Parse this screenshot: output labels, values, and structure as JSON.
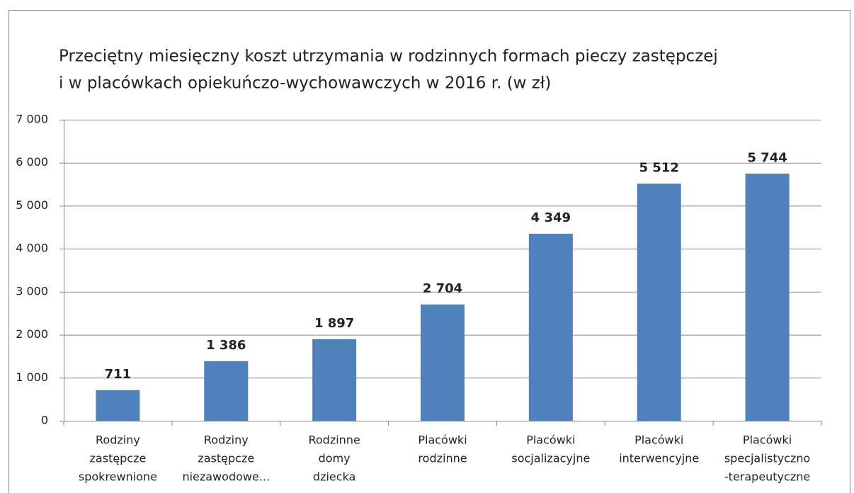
{
  "chart_data": {
    "type": "bar",
    "title": [
      "Przeciętny miesięczny koszt utrzymania  w rodzinnych formach pieczy zastępczej",
      "i w placówkach opiekuńczo-wychowawczych  w 2016 r. (w zł)"
    ],
    "categories": [
      [
        "Rodziny",
        "zastępcze",
        "spokrewnione"
      ],
      [
        "Rodziny",
        "zastępcze",
        "niezawodowe..."
      ],
      [
        "Rodzinne",
        "domy",
        "dziecka"
      ],
      [
        "Placówki",
        "rodzinne"
      ],
      [
        "Placówki",
        "socjalizacyjne"
      ],
      [
        "Placówki",
        "interwencyjne"
      ],
      [
        "Placówki",
        "specjalistyczno",
        "-terapeutyczne"
      ]
    ],
    "values": [
      711,
      1386,
      1897,
      2704,
      4349,
      5512,
      5744
    ],
    "value_labels": [
      "711",
      "1 386",
      "1 897",
      "2 704",
      "4 349",
      "5 512",
      "5 744"
    ],
    "color": "#4f81bd",
    "ylim": [
      0,
      7000
    ],
    "yticks": [
      0,
      {
        "value": 1000,
        "label": "1 000"
      },
      {
        "value": 2000,
        "label": "2 000"
      },
      {
        "value": 3000,
        "label": "3 000"
      },
      {
        "value": 4000,
        "label": "4 000"
      },
      {
        "value": 5000,
        "label": "5 000"
      },
      {
        "value": 6000,
        "label": "6 000"
      },
      {
        "value": 7000,
        "label": "7 000"
      }
    ],
    "grid": true
  }
}
